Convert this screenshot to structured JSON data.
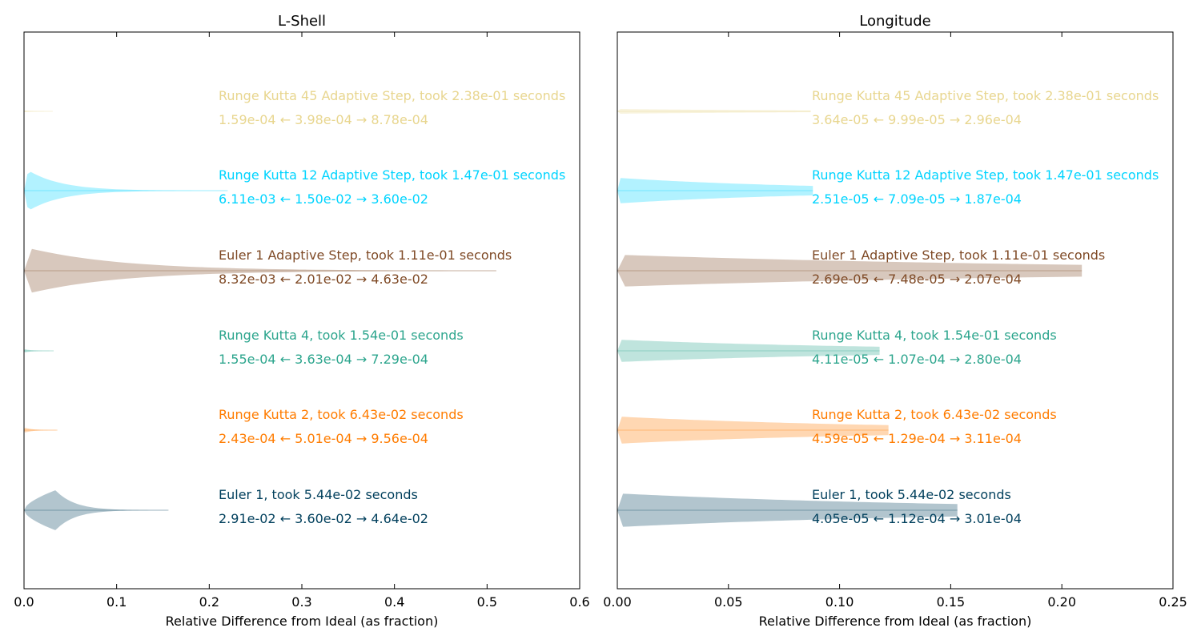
{
  "chart_data": [
    {
      "type": "violin",
      "title": "L-Shell",
      "xlabel": "Relative Difference from Ideal (as fraction)",
      "ylabel": "",
      "xlim": [
        0,
        0.6
      ],
      "xticks": [
        "0.0",
        "0.1",
        "0.2",
        "0.3",
        "0.4",
        "0.5",
        "0.6"
      ],
      "xtick_values": [
        0,
        0.1,
        0.2,
        0.3,
        0.4,
        0.5,
        0.6
      ],
      "grid": false,
      "series": [
        {
          "name": "Euler 1, took 5.44e-02 seconds",
          "color": "#003f5c",
          "min": 0.0,
          "mode": 0.034,
          "max": 0.156,
          "low": "2.91e-02",
          "median": "3.60e-02",
          "high": "4.64e-02"
        },
        {
          "name": "Runge Kutta 2, took 6.43e-02 seconds",
          "color": "#ff7c00",
          "min": 0.0,
          "mode": 0.001,
          "max": 0.036,
          "low": "2.43e-04",
          "median": "5.01e-04",
          "high": "9.56e-04"
        },
        {
          "name": "Runge Kutta 4, took 1.54e-01 seconds",
          "color": "#2ca58d",
          "min": 0.0,
          "mode": 0.001,
          "max": 0.032,
          "low": "1.55e-04",
          "median": "3.63e-04",
          "high": "7.29e-04"
        },
        {
          "name": "Euler 1 Adaptive Step, took 1.11e-01 seconds",
          "color": "#7f4a26",
          "min": 0.0,
          "mode": 0.006,
          "max": 0.51,
          "low": "8.32e-03",
          "median": "2.01e-02",
          "high": "4.63e-02"
        },
        {
          "name": "Runge Kutta 12 Adaptive Step, took 1.47e-01 seconds",
          "color": "#00d4ff",
          "min": 0.0,
          "mode": 0.005,
          "max": 0.22,
          "low": "6.11e-03",
          "median": "1.50e-02",
          "high": "3.60e-02"
        },
        {
          "name": "Runge Kutta 45 Adaptive Step, took 2.38e-01 seconds",
          "color": "#e8d68f",
          "min": 0.0,
          "mode": 0.001,
          "max": 0.031,
          "low": "1.59e-04",
          "median": "3.98e-04",
          "high": "8.78e-04"
        }
      ]
    },
    {
      "type": "violin",
      "title": "Longitude",
      "xlabel": "Relative Difference from Ideal (as fraction)",
      "ylabel": "",
      "xlim": [
        0,
        0.25
      ],
      "xticks": [
        "0.00",
        "0.05",
        "0.10",
        "0.15",
        "0.20",
        "0.25"
      ],
      "xtick_values": [
        0,
        0.05,
        0.1,
        0.15,
        0.2,
        0.25
      ],
      "grid": false,
      "series": [
        {
          "name": "Euler 1, took 5.44e-02 seconds",
          "color": "#003f5c",
          "min": 0.0,
          "mode": 0.0001,
          "max": 0.153,
          "low": "4.05e-05",
          "median": "1.12e-04",
          "high": "3.01e-04"
        },
        {
          "name": "Runge Kutta 2, took 6.43e-02 seconds",
          "color": "#ff7c00",
          "min": 0.0,
          "mode": 0.0001,
          "max": 0.122,
          "low": "4.59e-05",
          "median": "1.29e-04",
          "high": "3.11e-04"
        },
        {
          "name": "Runge Kutta 4, took 1.54e-01 seconds",
          "color": "#2ca58d",
          "min": 0.0,
          "mode": 0.0001,
          "max": 0.118,
          "low": "4.11e-05",
          "median": "1.07e-04",
          "high": "2.80e-04"
        },
        {
          "name": "Euler 1 Adaptive Step, took 1.11e-01 seconds",
          "color": "#7f4a26",
          "min": 0.0,
          "mode": 0.0001,
          "max": 0.209,
          "low": "2.69e-05",
          "median": "7.48e-05",
          "high": "2.07e-04"
        },
        {
          "name": "Runge Kutta 12 Adaptive Step, took 1.47e-01 seconds",
          "color": "#00d4ff",
          "min": 0.0,
          "mode": 0.0001,
          "max": 0.088,
          "low": "2.51e-05",
          "median": "7.09e-05",
          "high": "1.87e-04"
        },
        {
          "name": "Runge Kutta 45 Adaptive Step, took 2.38e-01 seconds",
          "color": "#e8d68f",
          "min": 0.0,
          "mode": 0.0001,
          "max": 0.087,
          "low": "3.64e-05",
          "median": "9.99e-05",
          "high": "2.96e-04"
        }
      ]
    }
  ]
}
